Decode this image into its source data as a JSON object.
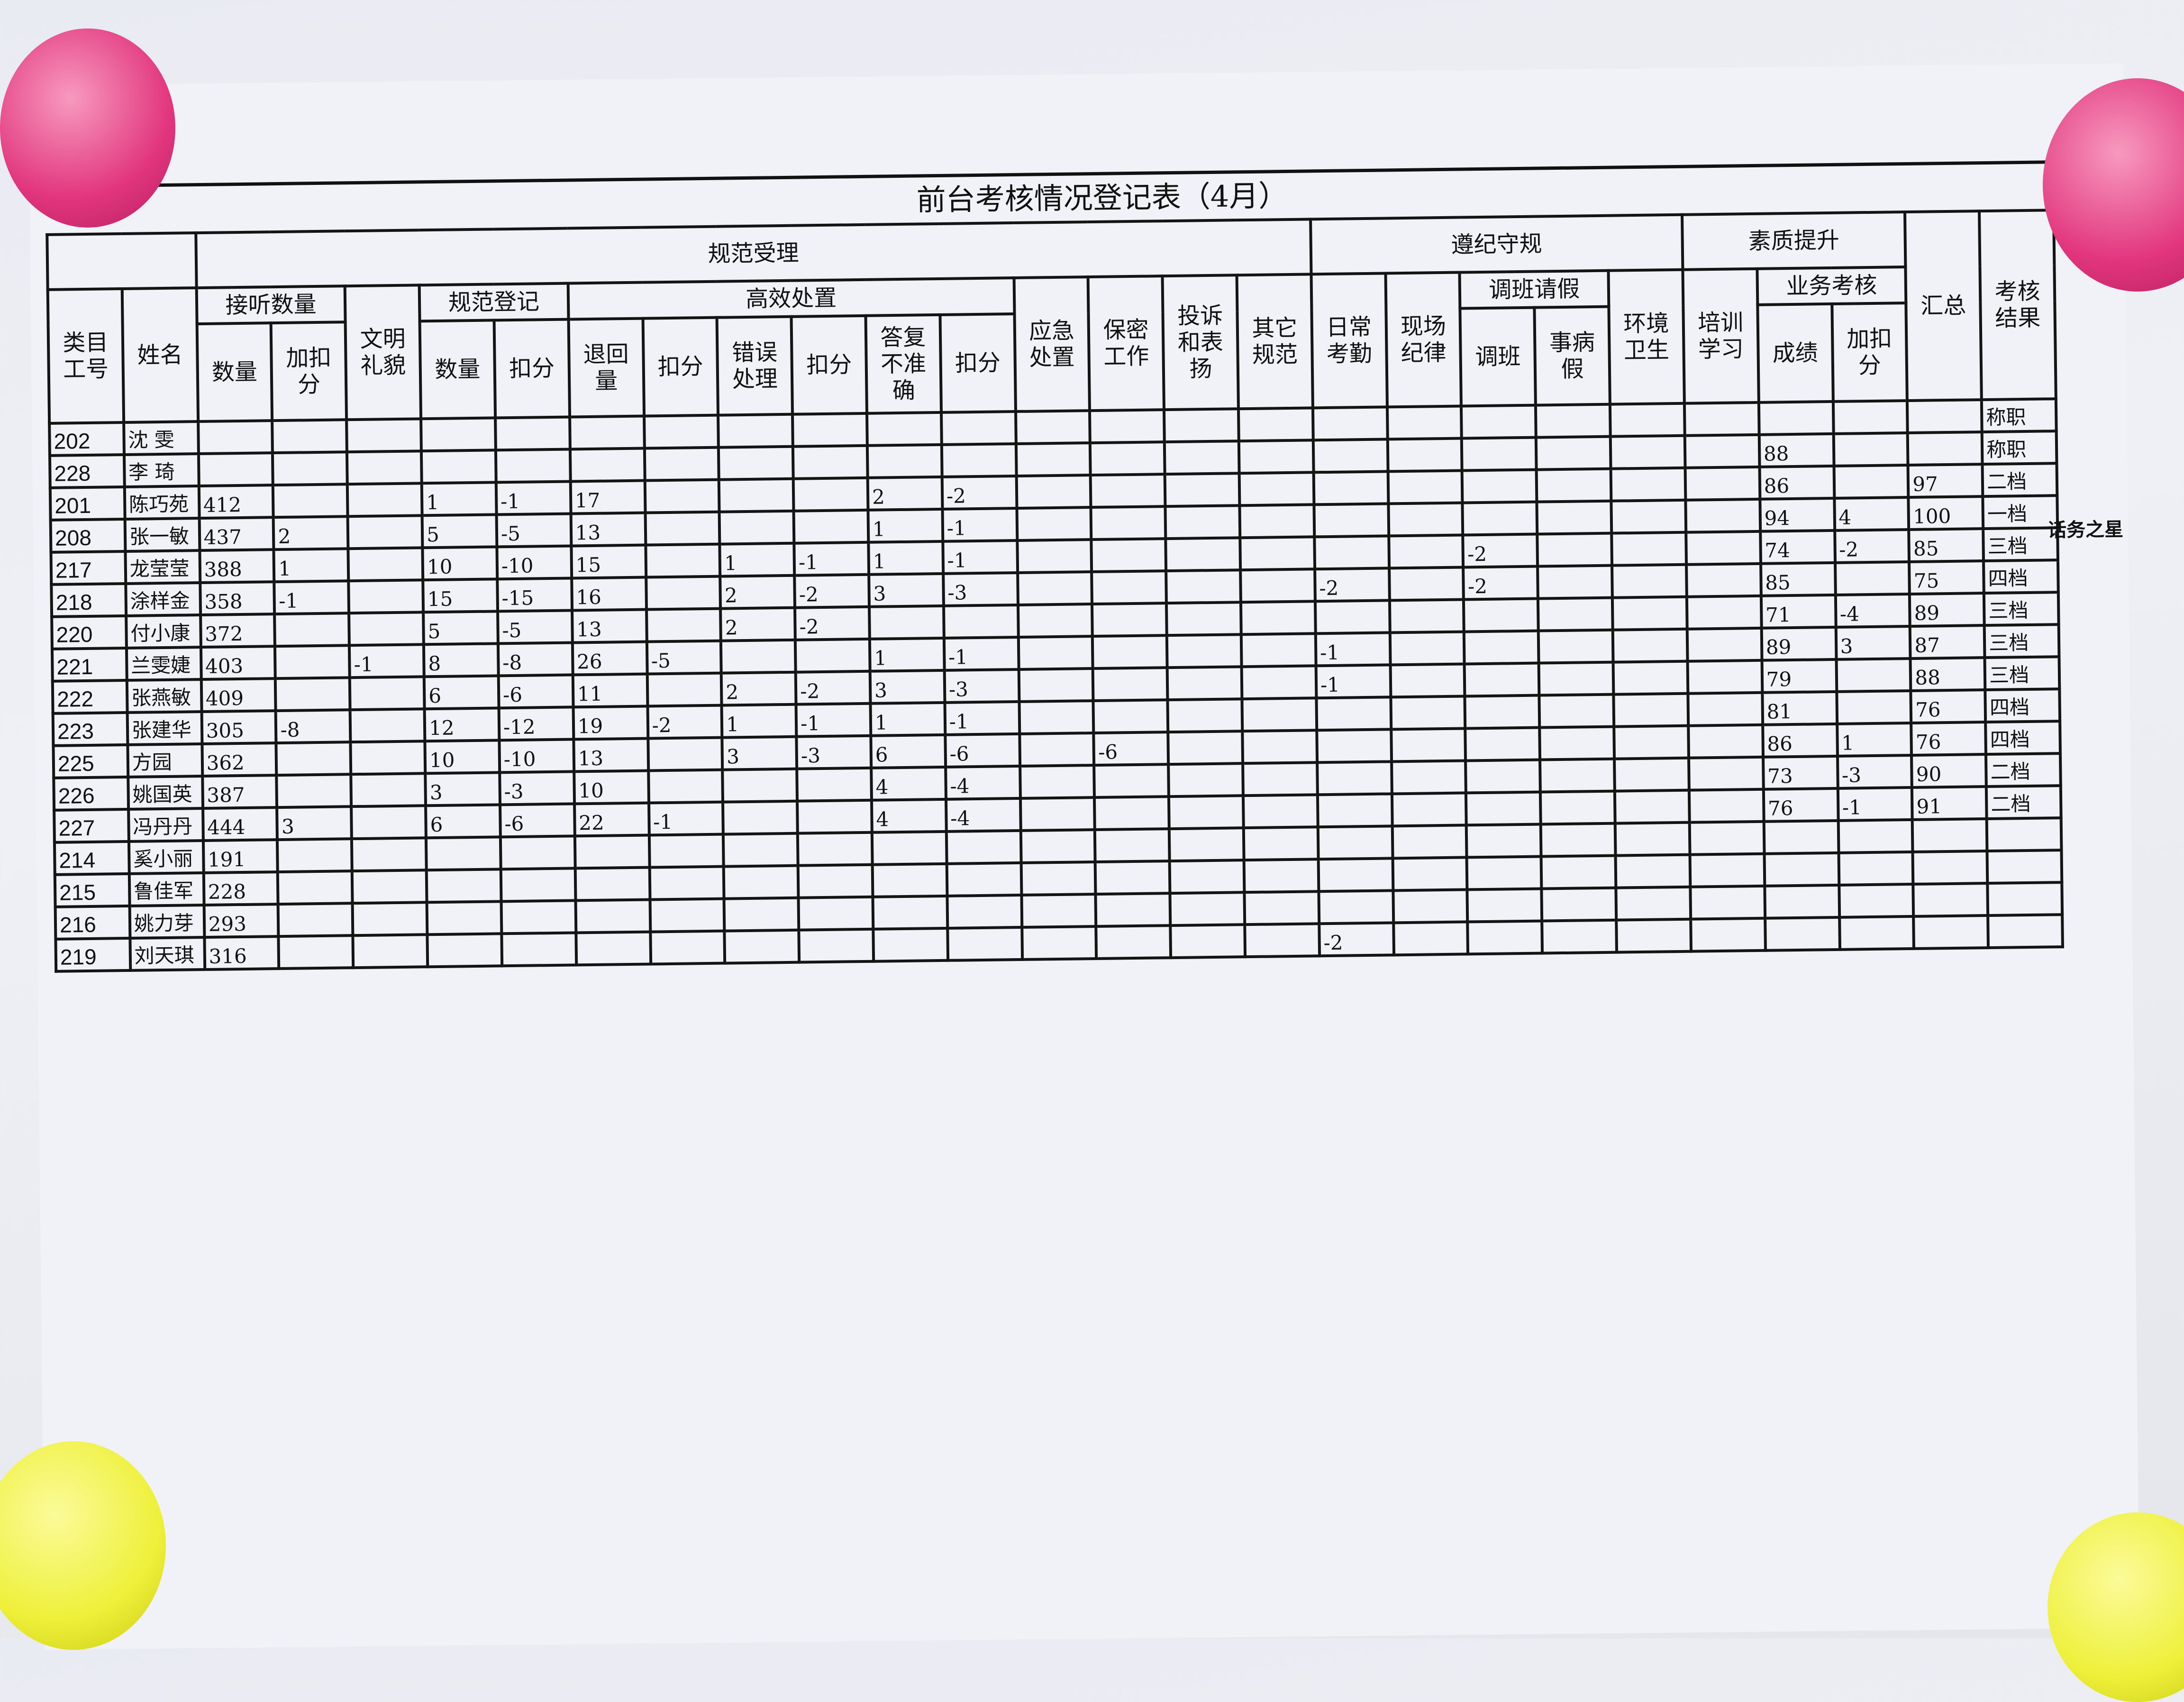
{
  "title": "前台考核情况登记表（4月）",
  "colors": {
    "magnet_top": "#e2367e",
    "magnet_bottom": "#eef03a",
    "paper": "#f1f2f7",
    "ink": "#141414"
  },
  "headers": {
    "group_regular": "规范受理",
    "group_discipline": "遵纪守规",
    "group_quality": "素质提升",
    "total": "汇总",
    "result": "考核结果",
    "id": "类目工号",
    "name": "姓名",
    "calls": "接听数量",
    "courtesy": "文明礼貌",
    "registration": "规范登记",
    "efficient": "高效处置",
    "emergency": "应急处置",
    "confidential": "保密工作",
    "complaint": "投诉和表扬",
    "other": "其它规范",
    "attendance": "日常考勤",
    "onsite": "现场纪律",
    "leave": "调班请假",
    "hygiene": "环境卫生",
    "training": "培训学习",
    "business": "业务考核",
    "calls_count": "数量",
    "calls_points": "加扣分",
    "reg_count": "数量",
    "reg_points": "扣分",
    "returns": "退回量",
    "returns_points": "扣分",
    "errors": "错误处理",
    "errors_points": "扣分",
    "inaccurate": "答复不准确",
    "inaccurate_points": "扣分",
    "shift": "调班",
    "sick": "事病假",
    "score": "成绩",
    "score_points": "加扣分"
  },
  "rows": [
    {
      "cells": [
        "202",
        "沈 雯",
        "",
        "",
        "",
        "",
        "",
        "",
        "",
        "",
        "",
        "",
        "",
        "",
        "",
        "",
        "",
        "",
        "",
        "",
        "",
        "",
        "",
        "",
        "",
        "",
        "称职"
      ]
    },
    {
      "cells": [
        "228",
        "李 琦",
        "",
        "",
        "",
        "",
        "",
        "",
        "",
        "",
        "",
        "",
        "",
        "",
        "",
        "",
        "",
        "",
        "",
        "",
        "",
        "",
        "",
        "88",
        "",
        "",
        "称职"
      ]
    },
    {
      "cells": [
        "201",
        "陈巧苑",
        "412",
        "",
        "",
        "1",
        "-1",
        "17",
        "",
        "",
        "",
        "2",
        "-2",
        "",
        "",
        "",
        "",
        "",
        "",
        "",
        "",
        "",
        "",
        "86",
        "",
        "97",
        "二档"
      ]
    },
    {
      "cells": [
        "208",
        "张一敏",
        "437",
        "2",
        "",
        "5",
        "-5",
        "13",
        "",
        "",
        "",
        "1",
        "-1",
        "",
        "",
        "",
        "",
        "",
        "",
        "",
        "",
        "",
        "",
        "94",
        "4",
        "100",
        "一档"
      ],
      "note": "话务之星"
    },
    {
      "cells": [
        "217",
        "龙莹莹",
        "388",
        "1",
        "",
        "10",
        "-10",
        "15",
        "",
        "1",
        "-1",
        "1",
        "-1",
        "",
        "",
        "",
        "",
        "",
        "",
        "-2",
        "",
        "",
        "",
        "74",
        "-2",
        "85",
        "三档"
      ]
    },
    {
      "cells": [
        "218",
        "涂样金",
        "358",
        "-1",
        "",
        "15",
        "-15",
        "16",
        "",
        "2",
        "-2",
        "3",
        "-3",
        "",
        "",
        "",
        "",
        "-2",
        "",
        "-2",
        "",
        "",
        "",
        "85",
        "",
        "75",
        "四档"
      ]
    },
    {
      "cells": [
        "220",
        "付小康",
        "372",
        "",
        "",
        "5",
        "-5",
        "13",
        "",
        "2",
        "-2",
        "",
        "",
        "",
        "",
        "",
        "",
        "",
        "",
        "",
        "",
        "",
        "",
        "71",
        "-4",
        "89",
        "三档"
      ]
    },
    {
      "cells": [
        "221",
        "兰雯婕",
        "403",
        "",
        "-1",
        "8",
        "-8",
        "26",
        "-5",
        "",
        "",
        "1",
        "-1",
        "",
        "",
        "",
        "",
        "-1",
        "",
        "",
        "",
        "",
        "",
        "89",
        "3",
        "87",
        "三档"
      ]
    },
    {
      "cells": [
        "222",
        "张燕敏",
        "409",
        "",
        "",
        "6",
        "-6",
        "11",
        "",
        "2",
        "-2",
        "3",
        "-3",
        "",
        "",
        "",
        "",
        "-1",
        "",
        "",
        "",
        "",
        "",
        "79",
        "",
        "88",
        "三档"
      ]
    },
    {
      "cells": [
        "223",
        "张建华",
        "305",
        "-8",
        "",
        "12",
        "-12",
        "19",
        "-2",
        "1",
        "-1",
        "1",
        "-1",
        "",
        "",
        "",
        "",
        "",
        "",
        "",
        "",
        "",
        "",
        "81",
        "",
        "76",
        "四档"
      ]
    },
    {
      "cells": [
        "225",
        "方园",
        "362",
        "",
        "",
        "10",
        "-10",
        "13",
        "",
        "3",
        "-3",
        "6",
        "-6",
        "",
        "-6",
        "",
        "",
        "",
        "",
        "",
        "",
        "",
        "",
        "86",
        "1",
        "76",
        "四档"
      ]
    },
    {
      "cells": [
        "226",
        "姚国英",
        "387",
        "",
        "",
        "3",
        "-3",
        "10",
        "",
        "",
        "",
        "4",
        "-4",
        "",
        "",
        "",
        "",
        "",
        "",
        "",
        "",
        "",
        "",
        "73",
        "-3",
        "90",
        "二档"
      ]
    },
    {
      "cells": [
        "227",
        "冯丹丹",
        "444",
        "3",
        "",
        "6",
        "-6",
        "22",
        "-1",
        "",
        "",
        "4",
        "-4",
        "",
        "",
        "",
        "",
        "",
        "",
        "",
        "",
        "",
        "",
        "76",
        "-1",
        "91",
        "二档"
      ]
    },
    {
      "cells": [
        "214",
        "奚小丽",
        "191",
        "",
        "",
        "",
        "",
        "",
        "",
        "",
        "",
        "",
        "",
        "",
        "",
        "",
        "",
        "",
        "",
        "",
        "",
        "",
        "",
        "",
        "",
        "",
        ""
      ]
    },
    {
      "cells": [
        "215",
        "鲁佳军",
        "228",
        "",
        "",
        "",
        "",
        "",
        "",
        "",
        "",
        "",
        "",
        "",
        "",
        "",
        "",
        "",
        "",
        "",
        "",
        "",
        "",
        "",
        "",
        "",
        ""
      ]
    },
    {
      "cells": [
        "216",
        "姚力芽",
        "293",
        "",
        "",
        "",
        "",
        "",
        "",
        "",
        "",
        "",
        "",
        "",
        "",
        "",
        "",
        "",
        "",
        "",
        "",
        "",
        "",
        "",
        "",
        "",
        ""
      ]
    },
    {
      "cells": [
        "219",
        "刘天琪",
        "316",
        "",
        "",
        "",
        "",
        "",
        "",
        "",
        "",
        "",
        "",
        "",
        "",
        "",
        "",
        "-2",
        "",
        "",
        "",
        "",
        "",
        "",
        "",
        "",
        ""
      ]
    }
  ]
}
